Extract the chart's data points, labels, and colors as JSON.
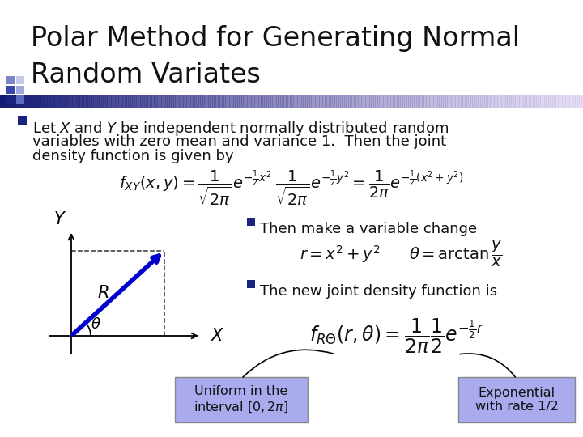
{
  "title_line1": "Polar Method for Generating Normal",
  "title_line2": "Random Variates",
  "title_fontsize": 24,
  "title_color": "#111111",
  "background_color": "#ffffff",
  "bullet_color": "#1a237e",
  "bullet_text_line1": "Let $X$ and $Y$ be independent normally distributed random",
  "bullet_text_line2": "variables with zero mean and variance 1.  Then the joint",
  "bullet_text_line3": "density function is given by",
  "formula_fxy": "$f_{XY}(x,y) = \\dfrac{1}{\\sqrt{2\\pi}}e^{-\\frac{1}{2}x^2} \\; \\dfrac{1}{\\sqrt{2\\pi}}e^{-\\frac{1}{2}y^2} = \\dfrac{1}{2\\pi}e^{-\\frac{1}{2}(x^2+y^2)}$",
  "sub_bullet1": "Then make a variable change",
  "formula_r": "$r = x^2 + y^2$",
  "formula_theta": "$\\theta = \\arctan\\dfrac{y}{x}$",
  "sub_bullet2": "The new joint density function is",
  "formula_frtheta": "$f_{R\\Theta}(r,\\theta) = \\dfrac{1}{2\\pi}\\dfrac{1}{2}e^{-\\frac{1}{2}r}$",
  "box1_text": "Uniform in the\ninterval $[0,2\\pi]$",
  "box2_text": "Exponential\nwith rate 1/2",
  "box_facecolor": "#aaaaee",
  "box_edgecolor": "#888888",
  "diagram_line_color": "#0000cc",
  "axis_label_X": "$X$",
  "axis_label_Y": "$Y$",
  "axis_label_R": "$R$",
  "axis_label_theta": "$\\theta$",
  "text_fontsize": 13,
  "formula_fontsize": 13,
  "sub_bullet_fontsize": 13
}
